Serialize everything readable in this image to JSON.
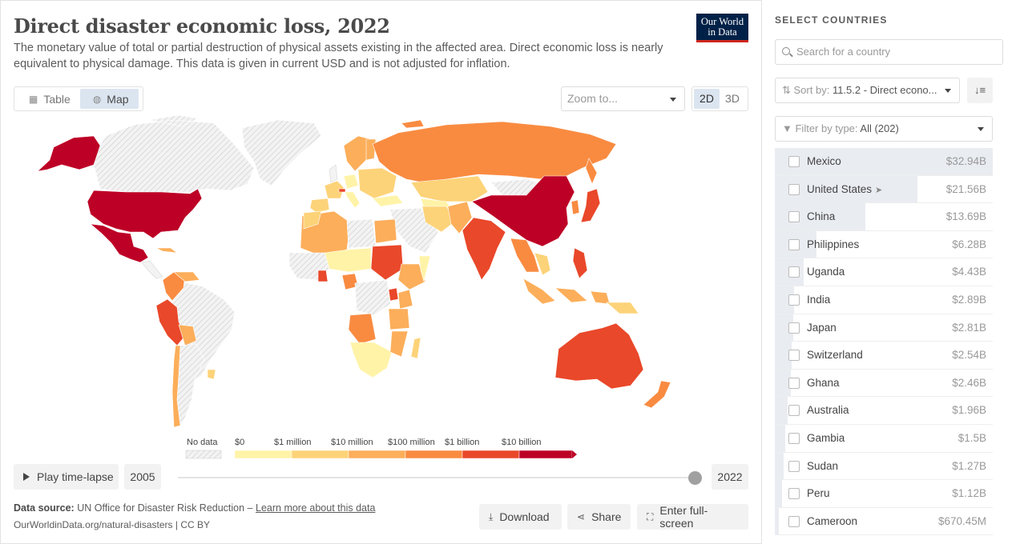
{
  "header": {
    "title": "Direct disaster economic loss, 2022",
    "subtitle": "The monetary value of total or partial destruction of physical assets existing in the affected area. Direct economic loss is nearly equivalent to physical damage. This data is given in current USD and is not adjusted for inflation.",
    "logo_line1": "Our World",
    "logo_line2": "in Data"
  },
  "tabs": {
    "table_label": "Table",
    "map_label": "Map",
    "active": "Map"
  },
  "zoom": {
    "placeholder": "Zoom to..."
  },
  "projection": {
    "options": [
      "2D",
      "3D"
    ],
    "active": "2D"
  },
  "legend": {
    "no_data_label": "No data",
    "bins": [
      "$0",
      "$1 million",
      "$10 million",
      "$100 million",
      "$1 billion",
      "$10 billion"
    ],
    "colors": [
      "#fff3a8",
      "#fdd379",
      "#fcae5a",
      "#f98b41",
      "#e9482a",
      "#bd0026"
    ],
    "no_data_color": "#e3e3e3"
  },
  "timeline": {
    "play_label": "Play time-lapse",
    "start_year": "2005",
    "end_year": "2022",
    "position": 1.0
  },
  "footer": {
    "source_label": "Data source:",
    "source_text": "UN Office for Disaster Risk Reduction –",
    "learn_more": "Learn more about this data",
    "url": "OurWorldinData.org/natural-disasters | CC BY",
    "download_label": "Download",
    "share_label": "Share",
    "fullscreen_label": "Enter full-screen"
  },
  "sidebar": {
    "title": "SELECT COUNTRIES",
    "search_placeholder": "Search for a country",
    "sort_prefix": "Sort by:",
    "sort_value": "11.5.2 - Direct econo...",
    "filter_prefix": "Filter by type:",
    "filter_value": "All (202)",
    "entities": [
      {
        "name": "Mexico",
        "value": "$32.94B",
        "fraction": 1.0
      },
      {
        "name": "United States",
        "value": "$21.56B",
        "fraction": 0.654,
        "arrow": true
      },
      {
        "name": "China",
        "value": "$13.69B",
        "fraction": 0.416
      },
      {
        "name": "Philippines",
        "value": "$6.28B",
        "fraction": 0.191
      },
      {
        "name": "Uganda",
        "value": "$4.43B",
        "fraction": 0.134
      },
      {
        "name": "India",
        "value": "$2.89B",
        "fraction": 0.088
      },
      {
        "name": "Japan",
        "value": "$2.81B",
        "fraction": 0.085
      },
      {
        "name": "Switzerland",
        "value": "$2.54B",
        "fraction": 0.077
      },
      {
        "name": "Ghana",
        "value": "$2.46B",
        "fraction": 0.075
      },
      {
        "name": "Australia",
        "value": "$1.96B",
        "fraction": 0.06
      },
      {
        "name": "Gambia",
        "value": "$1.5B",
        "fraction": 0.046
      },
      {
        "name": "Sudan",
        "value": "$1.27B",
        "fraction": 0.039
      },
      {
        "name": "Peru",
        "value": "$1.12B",
        "fraction": 0.034
      },
      {
        "name": "Cameroon",
        "value": "$670.45M",
        "fraction": 0.02
      }
    ]
  },
  "map_regions": [
    {
      "name": "United States",
      "bin": 5
    },
    {
      "name": "Mexico",
      "bin": 5
    },
    {
      "name": "China",
      "bin": 5
    },
    {
      "name": "Alaska",
      "bin": 5
    },
    {
      "name": "Canada",
      "bin": -1
    },
    {
      "name": "Greenland",
      "bin": -1
    },
    {
      "name": "Russia",
      "bin": 3
    },
    {
      "name": "India",
      "bin": 4
    },
    {
      "name": "Australia",
      "bin": 4
    },
    {
      "name": "Brazil",
      "bin": -1
    },
    {
      "name": "Peru",
      "bin": 4
    },
    {
      "name": "Sudan",
      "bin": 4
    },
    {
      "name": "Kazakhstan",
      "bin": 1
    },
    {
      "name": "Mongolia",
      "bin": -1
    },
    {
      "name": "Japan",
      "bin": 4
    },
    {
      "name": "Philippines",
      "bin": 4
    },
    {
      "name": "Indonesia",
      "bin": 2
    }
  ]
}
